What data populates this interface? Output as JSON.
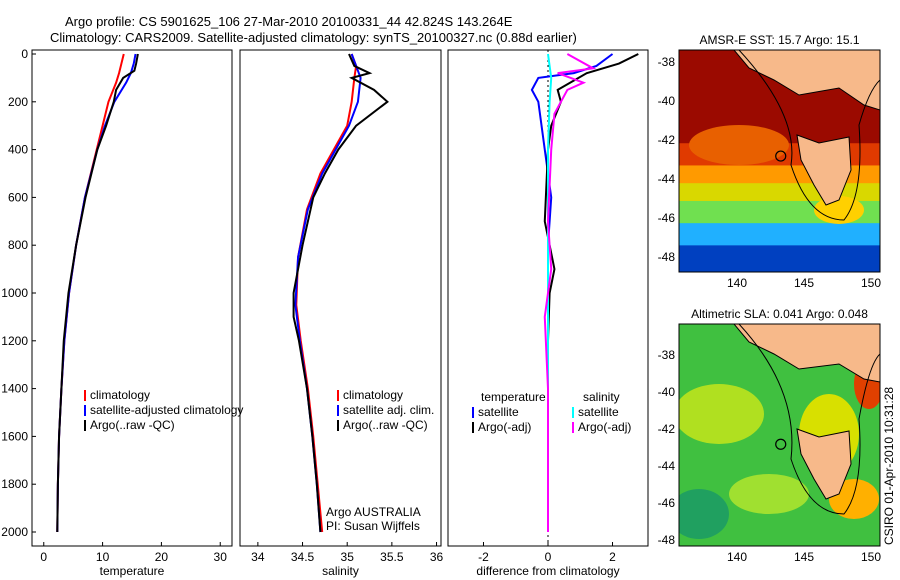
{
  "title_line1": "Argo profile: CS 5901625_106 27-Mar-2010 20100331_44 42.824S 143.264E",
  "title_line2": "Climatology: CARS2009. Satellite-adjusted climatology: synTS_20100327.nc (0.88d earlier)",
  "side_label": "CSIRO 01-Apr-2010 10:31:28",
  "colors": {
    "climatology": "#ff0000",
    "satellite": "#0000ff",
    "argo": "#000000",
    "sal_satellite": "#00ffff",
    "sal_argo": "#ff00ff",
    "land": "#f7b98a"
  },
  "chart_data": [
    {
      "type": "line",
      "xlabel": "temperature",
      "ylabel": "",
      "xlim": [
        -2,
        32
      ],
      "ylim": [
        2050,
        0
      ],
      "xticks": [
        0,
        10,
        20,
        30
      ],
      "yticks": [
        0,
        200,
        400,
        600,
        800,
        1000,
        1200,
        1400,
        1600,
        1800,
        2000
      ],
      "legend": [
        "climatology",
        "satellite-adjusted climatology",
        "Argo(..raw -QC)"
      ],
      "series": [
        {
          "name": "climatology",
          "color": "#ff0000",
          "x": [
            13.6,
            13.2,
            12.8,
            12.3,
            11,
            10,
            9,
            7,
            5.5,
            4.3,
            3.5,
            3,
            2.6,
            2.4,
            2.3
          ],
          "y": [
            0,
            40,
            80,
            120,
            200,
            300,
            400,
            600,
            800,
            1000,
            1200,
            1400,
            1600,
            1800,
            2000
          ]
        },
        {
          "name": "satellite-adjusted climatology",
          "color": "#0000ff",
          "x": [
            15.6,
            15.3,
            14.8,
            14,
            12,
            10.4,
            9.1,
            7,
            5.5,
            4.3,
            3.5,
            3,
            2.6,
            2.4,
            2.3
          ],
          "y": [
            0,
            40,
            80,
            120,
            200,
            300,
            400,
            600,
            800,
            1000,
            1200,
            1400,
            1600,
            1800,
            2000
          ]
        },
        {
          "name": "Argo(..raw -QC)",
          "color": "#000000",
          "x": [
            16,
            15.7,
            15.4,
            13.5,
            12.3,
            11.9,
            10.6,
            9.1,
            7.1,
            5.5,
            4.2,
            3.4,
            3,
            2.6,
            2.4,
            2.3
          ],
          "y": [
            0,
            40,
            70,
            100,
            150,
            200,
            300,
            400,
            600,
            800,
            1000,
            1200,
            1400,
            1600,
            1800,
            2000
          ]
        }
      ]
    },
    {
      "type": "line",
      "xlabel": "salinity",
      "ylabel": "",
      "xlim": [
        33.8,
        36.05
      ],
      "ylim": [
        2050,
        0
      ],
      "xticks": [
        34,
        34.5,
        35,
        35.5,
        36
      ],
      "yticks": [],
      "legend": [
        "climatology",
        "satellite adj. clim.",
        "Argo(..raw -QC)"
      ],
      "annotation": [
        "Argo AUSTRALIA",
        "PI: Susan Wijffels"
      ],
      "series": [
        {
          "name": "climatology",
          "color": "#ff0000",
          "x": [
            35.05,
            35.1,
            35.08,
            35.05,
            35,
            34.85,
            34.7,
            34.55,
            34.45,
            34.43,
            34.48,
            34.56,
            34.62,
            34.67,
            34.72
          ],
          "y": [
            0,
            50,
            100,
            200,
            300,
            400,
            500,
            650,
            850,
            1050,
            1200,
            1400,
            1600,
            1800,
            2000
          ]
        },
        {
          "name": "satellite adj. clim.",
          "color": "#0000ff",
          "x": [
            35.05,
            35.1,
            35.15,
            35.12,
            35.02,
            34.87,
            34.72,
            34.56,
            34.45,
            34.42,
            34.47,
            34.55,
            34.61,
            34.66,
            34.7
          ],
          "y": [
            0,
            50,
            100,
            200,
            300,
            400,
            500,
            650,
            850,
            1050,
            1200,
            1400,
            1600,
            1800,
            2000
          ]
        },
        {
          "name": "Argo(..raw -QC)",
          "color": "#000000",
          "x": [
            35.02,
            35.08,
            35.25,
            35.05,
            35.3,
            35.45,
            35.1,
            34.9,
            34.75,
            34.62,
            34.5,
            34.4,
            34.4,
            34.46,
            34.55,
            34.61,
            34.66,
            34.7
          ],
          "y": [
            0,
            50,
            80,
            100,
            150,
            200,
            300,
            400,
            500,
            600,
            800,
            1000,
            1100,
            1200,
            1400,
            1600,
            1800,
            2000
          ]
        }
      ]
    },
    {
      "type": "line",
      "xlabel": "difference from climatology",
      "ylabel": "",
      "xlim": [
        -3.1,
        3.1
      ],
      "ylim": [
        2050,
        0
      ],
      "xticks": [
        -2,
        0,
        2
      ],
      "yticks": [],
      "legend_headers": [
        "temperature",
        "salinity"
      ],
      "legend": [
        "satellite",
        "Argo(-adj)",
        "satellite",
        "Argo(-adj)"
      ],
      "series": [
        {
          "name": "temperature satellite",
          "color": "#0000ff",
          "x": [
            2,
            1.5,
            0.8,
            -0.3,
            -0.5,
            -0.3,
            -0.1,
            0.1,
            0,
            0,
            0,
            0,
            0,
            0,
            0
          ],
          "y": [
            0,
            50,
            80,
            100,
            150,
            200,
            400,
            600,
            800,
            1000,
            1200,
            1400,
            1600,
            1800,
            2000
          ]
        },
        {
          "name": "temperature Argo(-adj)",
          "color": "#000000",
          "x": [
            2.8,
            2.2,
            1.2,
            0.3,
            0.4,
            0.1,
            0,
            -0.1,
            0.2,
            0.05,
            0,
            0,
            0,
            0,
            0
          ],
          "y": [
            0,
            40,
            80,
            150,
            200,
            300,
            400,
            700,
            900,
            1000,
            1200,
            1400,
            1600,
            1800,
            2000
          ]
        },
        {
          "name": "salinity satellite",
          "color": "#00ffff",
          "x": [
            0,
            0.05,
            0.1,
            0.05,
            0,
            0,
            0,
            0,
            0,
            0,
            0,
            0,
            0,
            0
          ],
          "y": [
            0,
            50,
            100,
            200,
            400,
            600,
            800,
            1000,
            1200,
            1400,
            1600,
            1800,
            1900,
            2000
          ]
        },
        {
          "name": "salinity Argo(-adj)",
          "color": "#ff00ff",
          "x": [
            0.6,
            1.4,
            0.3,
            1.1,
            0.6,
            0.2,
            0.1,
            0,
            0.1,
            -0.1,
            0,
            0,
            0
          ],
          "y": [
            0,
            60,
            80,
            120,
            150,
            250,
            400,
            700,
            900,
            1100,
            1400,
            1700,
            2000
          ]
        }
      ]
    }
  ],
  "maps": [
    {
      "title": "AMSR-E SST: 15.7 Argo: 15.1",
      "xticks": [
        140,
        145,
        150
      ],
      "yticks": [
        -38,
        -40,
        -42,
        -44,
        -46,
        -48
      ]
    },
    {
      "title": "Altimetric SLA: 0.041 Argo: 0.048",
      "xticks": [
        140,
        145,
        150
      ],
      "yticks": [
        -38,
        -40,
        -42,
        -44,
        -46,
        -48
      ]
    }
  ],
  "argo_position": {
    "lon": 143.264,
    "lat": -42.824
  }
}
